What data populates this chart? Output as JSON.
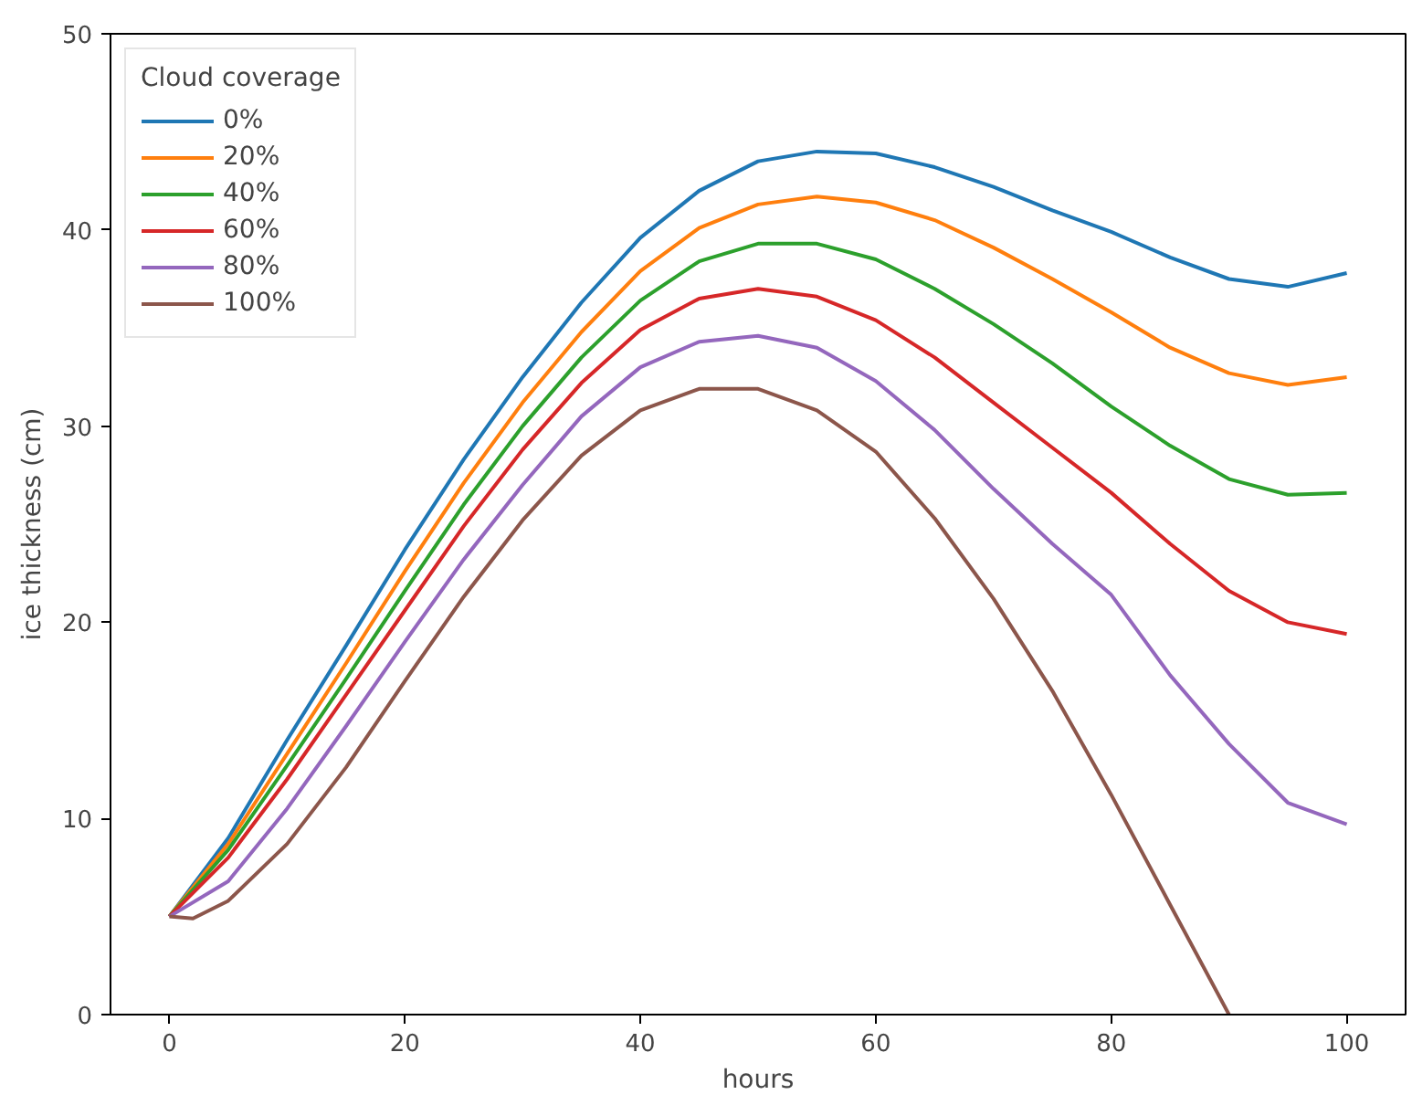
{
  "chart_data": {
    "type": "line",
    "xlabel": "hours",
    "ylabel": "ice thickness (cm)",
    "legend_title": "Cloud coverage",
    "legend": "top left",
    "grid": false,
    "xlim": [
      -5,
      105
    ],
    "ylim": [
      0,
      50
    ],
    "xticks": [
      0,
      20,
      40,
      60,
      80,
      100
    ],
    "yticks": [
      0,
      10,
      20,
      30,
      40,
      50
    ],
    "x": [
      0,
      5,
      10,
      15,
      20,
      25,
      30,
      35,
      40,
      45,
      50,
      55,
      60,
      65,
      70,
      75,
      80,
      85,
      90,
      95,
      100
    ],
    "series": [
      {
        "name": "0%",
        "color": "#1f77b4",
        "values": [
          5,
          9,
          14,
          18.8,
          23.7,
          28.3,
          32.5,
          36.3,
          39.6,
          42,
          43.5,
          44,
          43.9,
          43.2,
          42.2,
          41,
          39.9,
          38.6,
          37.5,
          37.1,
          37.8
        ]
      },
      {
        "name": "20%",
        "color": "#ff7f0e",
        "values": [
          5,
          8.7,
          13.3,
          17.9,
          22.6,
          27.1,
          31.2,
          34.8,
          37.9,
          40.1,
          41.3,
          41.7,
          41.4,
          40.5,
          39.1,
          37.5,
          35.8,
          34,
          32.7,
          32.1,
          32.5
        ]
      },
      {
        "name": "40%",
        "color": "#2ca02c",
        "values": [
          5,
          8.4,
          12.7,
          17.1,
          21.6,
          26,
          30,
          33.5,
          36.4,
          38.4,
          39.3,
          39.3,
          38.5,
          37,
          35.2,
          33.2,
          31,
          29,
          27.3,
          26.5,
          26.6
        ]
      },
      {
        "name": "60%",
        "color": "#d62728",
        "values": [
          5,
          8,
          12,
          16.3,
          20.6,
          24.9,
          28.8,
          32.2,
          34.9,
          36.5,
          37,
          36.6,
          35.4,
          33.5,
          31.2,
          28.9,
          26.6,
          24,
          21.6,
          20,
          19.4
        ]
      },
      {
        "name": "80%",
        "color": "#9467bd",
        "values": [
          5,
          6.8,
          10.5,
          14.7,
          19,
          23.2,
          27,
          30.5,
          33,
          34.3,
          34.6,
          34,
          32.3,
          29.8,
          26.8,
          24,
          21.4,
          17.3,
          13.8,
          10.8,
          9.7
        ]
      },
      {
        "name": "100%",
        "color": "#8c564b",
        "x": [
          0,
          2,
          5,
          10,
          15,
          20,
          25,
          30,
          35,
          40,
          45,
          50,
          55,
          60,
          65,
          70,
          75,
          80,
          85,
          90
        ],
        "values": [
          5,
          4.9,
          5.8,
          8.7,
          12.6,
          17,
          21.3,
          25.2,
          28.5,
          30.8,
          31.9,
          31.9,
          30.8,
          28.7,
          25.3,
          21.2,
          16.5,
          11.2,
          5.6,
          0
        ]
      }
    ]
  }
}
